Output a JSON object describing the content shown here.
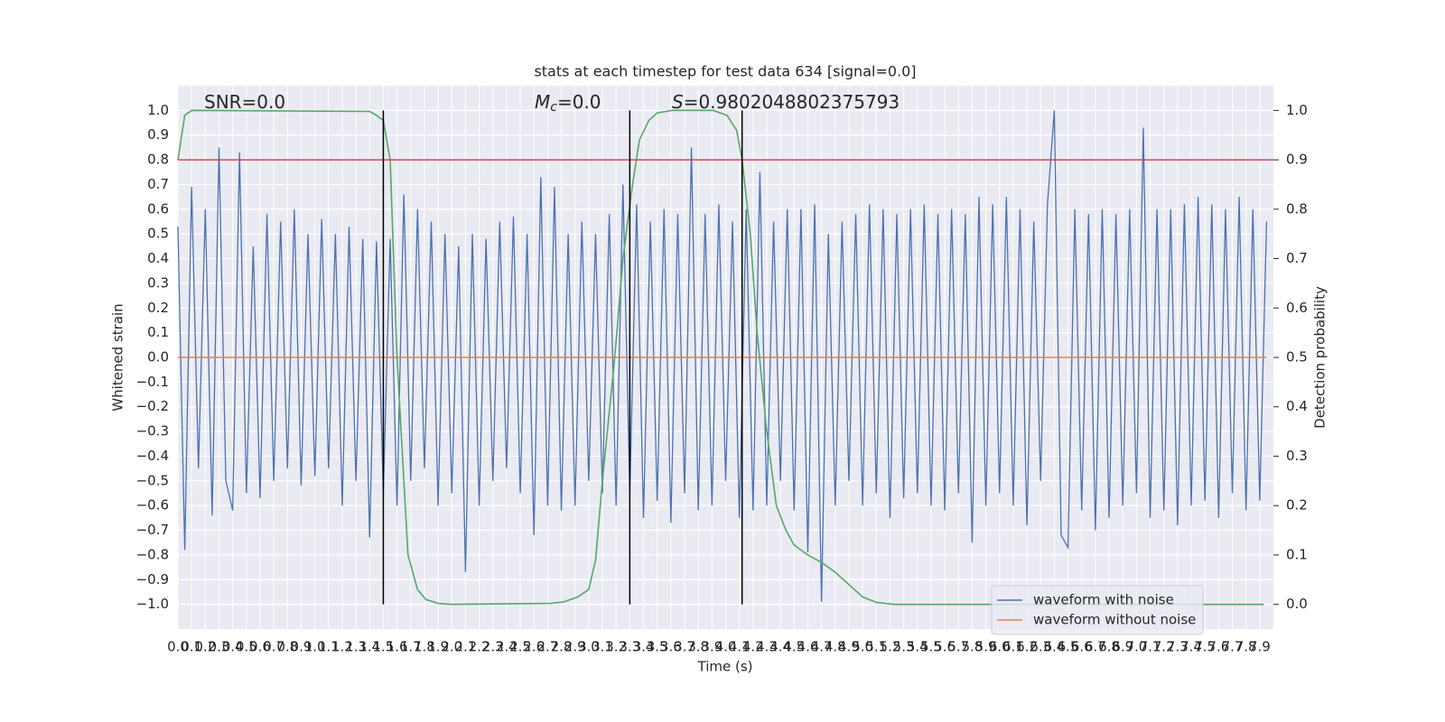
{
  "chart_data": {
    "type": "line",
    "title": "stats at each timestep for test data 634 [signal=0.0]",
    "xlabel": "Time (s)",
    "ylabel": "Whitened strain",
    "y2label": "Detection probability",
    "annotations": [
      {
        "parts": [
          "SNR=0.0"
        ]
      },
      {
        "parts": [
          "M",
          "c",
          "=0.0"
        ]
      },
      {
        "parts": [
          "S",
          "=0.9802048802375793"
        ]
      }
    ],
    "xlim": [
      0,
      8.0
    ],
    "ylim": [
      -1.1,
      1.1
    ],
    "y2lim": [
      -0.05,
      1.05
    ],
    "xticks": [
      {
        "value": 0,
        "label": "0.0"
      },
      0.1,
      0.2,
      0.3,
      0.4,
      0.5,
      0.6,
      0.7,
      0.8,
      0.9,
      {
        "value": 1,
        "label": "1.0"
      },
      1.1,
      1.2,
      1.3,
      1.4,
      1.5,
      1.6,
      1.7,
      1.8,
      1.9,
      {
        "value": 2,
        "label": "2.0"
      },
      2.1,
      2.2,
      2.3,
      2.4,
      2.5,
      2.6,
      2.7,
      2.8,
      2.9,
      {
        "value": 3,
        "label": "3.0"
      },
      3.1,
      3.2,
      3.3,
      3.4,
      3.5,
      3.6,
      3.7,
      3.8,
      3.9,
      {
        "value": 4,
        "label": "4.0"
      },
      4.1,
      4.2,
      4.3,
      4.4,
      4.5,
      4.6,
      4.7,
      4.8,
      4.9,
      {
        "value": 5,
        "label": "5.0"
      },
      5.1,
      5.2,
      5.3,
      5.4,
      5.5,
      5.6,
      5.7,
      5.8,
      5.9,
      {
        "value": 6,
        "label": "6.0"
      },
      6.1,
      6.2,
      6.3,
      6.4,
      6.5,
      6.6,
      6.7,
      6.8,
      6.9,
      {
        "value": 7,
        "label": "7.0"
      },
      7.1,
      7.2,
      7.3,
      7.4,
      7.5,
      7.6,
      7.7,
      7.8,
      7.9
    ],
    "yticks": [
      {
        "value": -1,
        "label": "−1.0"
      },
      {
        "value": -0.9,
        "label": "−0.9"
      },
      {
        "value": -0.8,
        "label": "−0.8"
      },
      {
        "value": -0.7,
        "label": "−0.7"
      },
      {
        "value": -0.6,
        "label": "−0.6"
      },
      {
        "value": -0.5,
        "label": "−0.5"
      },
      {
        "value": -0.4,
        "label": "−0.4"
      },
      {
        "value": -0.3,
        "label": "−0.3"
      },
      {
        "value": -0.2,
        "label": "−0.2"
      },
      {
        "value": -0.1,
        "label": "−0.1"
      },
      {
        "value": 0,
        "label": "0.0"
      },
      0.1,
      0.2,
      0.3,
      0.4,
      0.5,
      0.6,
      0.7,
      0.8,
      0.9,
      {
        "value": 1,
        "label": "1.0"
      }
    ],
    "y2ticks": [
      {
        "value": 0,
        "label": "0.0"
      },
      0.1,
      0.2,
      0.3,
      0.4,
      0.5,
      0.6,
      0.7,
      0.8,
      0.9,
      {
        "value": 1,
        "label": "1.0"
      }
    ],
    "grid": true,
    "legend": "lower right",
    "series": [
      {
        "name": "waveform with noise",
        "color": "#4c72b0",
        "x": [
          0,
          0.05,
          0.1,
          0.15,
          0.2,
          0.25,
          0.3,
          0.35,
          0.4,
          0.45,
          0.5,
          0.55,
          0.6,
          0.65,
          0.7,
          0.75,
          0.8,
          0.85,
          0.9,
          0.95,
          1,
          1.05,
          1.1,
          1.15,
          1.2,
          1.25,
          1.3,
          1.35,
          1.4,
          1.45,
          1.5,
          1.55,
          1.6,
          1.65,
          1.7,
          1.75,
          1.8,
          1.85,
          1.9,
          1.95,
          2,
          2.05,
          2.1,
          2.15,
          2.2,
          2.25,
          2.3,
          2.35,
          2.4,
          2.45,
          2.5,
          2.55,
          2.6,
          2.65,
          2.7,
          2.75,
          2.8,
          2.85,
          2.9,
          2.95,
          3,
          3.05,
          3.1,
          3.15,
          3.2,
          3.25,
          3.3,
          3.35,
          3.4,
          3.45,
          3.5,
          3.55,
          3.6,
          3.65,
          3.7,
          3.75,
          3.8,
          3.85,
          3.9,
          3.95,
          4,
          4.05,
          4.1,
          4.15,
          4.2,
          4.25,
          4.3,
          4.35,
          4.4,
          4.45,
          4.5,
          4.55,
          4.6,
          4.65,
          4.7,
          4.75,
          4.8,
          4.85,
          4.9,
          4.95,
          5,
          5.05,
          5.1,
          5.15,
          5.2,
          5.25,
          5.3,
          5.35,
          5.4,
          5.45,
          5.5,
          5.55,
          5.6,
          5.65,
          5.7,
          5.75,
          5.8,
          5.85,
          5.9,
          5.95,
          6,
          6.05,
          6.1,
          6.15,
          6.2,
          6.25,
          6.3,
          6.35,
          6.4,
          6.45,
          6.5,
          6.55,
          6.6,
          6.65,
          6.7,
          6.75,
          6.8,
          6.85,
          6.9,
          6.95,
          7,
          7.05,
          7.1,
          7.15,
          7.2,
          7.25,
          7.3,
          7.35,
          7.4,
          7.45,
          7.5,
          7.55,
          7.6,
          7.65,
          7.7,
          7.75,
          7.8,
          7.85,
          7.9,
          7.95
        ],
        "values": [
          0.53,
          -0.78,
          0.69,
          -0.45,
          0.6,
          -0.64,
          0.85,
          -0.5,
          -0.62,
          0.83,
          -0.55,
          0.45,
          -0.57,
          0.58,
          -0.5,
          0.55,
          -0.45,
          0.6,
          -0.52,
          0.5,
          -0.48,
          0.56,
          -0.45,
          0.5,
          -0.6,
          0.53,
          -0.5,
          0.48,
          -0.73,
          0.47,
          -0.55,
          0.48,
          -0.6,
          0.66,
          -0.5,
          0.6,
          -0.45,
          0.55,
          -0.6,
          0.5,
          -0.55,
          0.45,
          -0.87,
          0.5,
          -0.6,
          0.48,
          -0.5,
          0.55,
          -0.45,
          0.57,
          -0.55,
          0.5,
          -0.72,
          0.73,
          -0.6,
          0.69,
          -0.62,
          0.5,
          -0.6,
          0.55,
          -0.5,
          0.5,
          -0.55,
          0.58,
          -0.6,
          0.7,
          -0.55,
          0.62,
          -0.65,
          0.55,
          -0.58,
          0.6,
          -0.67,
          0.58,
          -0.55,
          0.85,
          -0.62,
          0.58,
          -0.6,
          0.62,
          -0.5,
          0.55,
          -0.65,
          0.6,
          -0.62,
          0.75,
          -0.6,
          0.55,
          -0.5,
          0.6,
          -0.62,
          0.6,
          -0.79,
          0.62,
          -0.99,
          0.5,
          -0.6,
          0.55,
          -0.5,
          0.58,
          -0.6,
          0.62,
          -0.55,
          0.6,
          -0.65,
          0.58,
          -0.57,
          0.6,
          -0.55,
          0.62,
          -0.6,
          0.58,
          -0.62,
          0.6,
          -0.55,
          0.58,
          -0.75,
          0.65,
          -0.6,
          0.62,
          -0.55,
          0.65,
          -0.6,
          0.6,
          -0.68,
          0.55,
          -0.5,
          0.62,
          1.0,
          -0.72,
          -0.77,
          0.6,
          -0.62,
          0.58,
          -0.7,
          0.6,
          -0.65,
          0.58,
          -0.6,
          0.6,
          -0.55,
          0.93,
          -0.65,
          0.6,
          -0.62,
          0.6,
          -0.68,
          0.62,
          -0.6,
          0.65,
          -0.58,
          0.62,
          -0.65,
          0.6,
          -0.55,
          0.65,
          -0.62,
          0.6,
          -0.58,
          0.55
        ]
      },
      {
        "name": "waveform without noise",
        "color": "#dd8452",
        "x": [
          0,
          7.95
        ],
        "values": [
          0,
          0
        ]
      },
      {
        "color": "#55a868",
        "axis": "y2",
        "x": [
          0,
          0.05,
          0.1,
          1.4,
          1.45,
          1.5,
          1.55,
          1.6,
          1.68,
          1.75,
          1.81,
          1.9,
          2.0,
          2.72,
          2.82,
          2.92,
          3.0,
          3.05,
          3.1,
          3.19,
          3.25,
          3.32,
          3.37,
          3.44,
          3.5,
          3.61,
          3.91,
          4.01,
          4.08,
          4.12,
          4.18,
          4.23,
          4.3,
          4.37,
          4.44,
          4.5,
          4.6,
          4.7,
          4.8,
          4.9,
          5.0,
          5.1,
          5.23,
          7.93
        ],
        "values": [
          0.9,
          0.99,
          1.0,
          0.998,
          0.99,
          0.98,
          0.9,
          0.5,
          0.1,
          0.03,
          0.01,
          0.002,
          0.0,
          0.002,
          0.005,
          0.015,
          0.03,
          0.09,
          0.25,
          0.5,
          0.7,
          0.85,
          0.94,
          0.98,
          0.995,
          1.0,
          1.0,
          0.99,
          0.96,
          0.9,
          0.75,
          0.55,
          0.35,
          0.2,
          0.15,
          0.12,
          0.1,
          0.085,
          0.065,
          0.04,
          0.015,
          0.004,
          0.0,
          0.0
        ]
      }
    ],
    "threshold": {
      "value": 0.9,
      "axis": "y2",
      "color": "#c44e52"
    },
    "vlines": {
      "x": [
        1.5,
        3.3,
        4.12
      ],
      "ymin": -1,
      "ymax": 1,
      "color": "#000000"
    }
  }
}
